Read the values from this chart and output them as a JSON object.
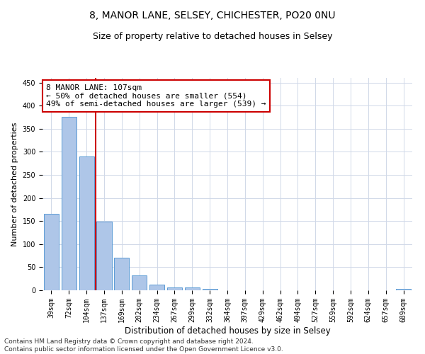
{
  "title": "8, MANOR LANE, SELSEY, CHICHESTER, PO20 0NU",
  "subtitle": "Size of property relative to detached houses in Selsey",
  "xlabel": "Distribution of detached houses by size in Selsey",
  "ylabel": "Number of detached properties",
  "bar_labels": [
    "39sqm",
    "72sqm",
    "104sqm",
    "137sqm",
    "169sqm",
    "202sqm",
    "234sqm",
    "267sqm",
    "299sqm",
    "332sqm",
    "364sqm",
    "397sqm",
    "429sqm",
    "462sqm",
    "494sqm",
    "527sqm",
    "559sqm",
    "592sqm",
    "624sqm",
    "657sqm",
    "689sqm"
  ],
  "bar_values": [
    165,
    375,
    290,
    148,
    70,
    32,
    13,
    6,
    6,
    3,
    0,
    0,
    0,
    0,
    0,
    0,
    0,
    0,
    0,
    0,
    3
  ],
  "bar_color": "#aec6e8",
  "bar_edge_color": "#5b9bd5",
  "vline_idx": 2,
  "vline_color": "#cc0000",
  "annotation_text": "8 MANOR LANE: 107sqm\n← 50% of detached houses are smaller (554)\n49% of semi-detached houses are larger (539) →",
  "annotation_box_color": "#ffffff",
  "annotation_box_edge_color": "#cc0000",
  "ylim": [
    0,
    460
  ],
  "yticks": [
    0,
    50,
    100,
    150,
    200,
    250,
    300,
    350,
    400,
    450
  ],
  "background_color": "#ffffff",
  "grid_color": "#d0d8e8",
  "footnote": "Contains HM Land Registry data © Crown copyright and database right 2024.\nContains public sector information licensed under the Open Government Licence v3.0.",
  "title_fontsize": 10,
  "subtitle_fontsize": 9,
  "xlabel_fontsize": 8.5,
  "ylabel_fontsize": 8,
  "tick_fontsize": 7,
  "annotation_fontsize": 8,
  "footnote_fontsize": 6.5
}
